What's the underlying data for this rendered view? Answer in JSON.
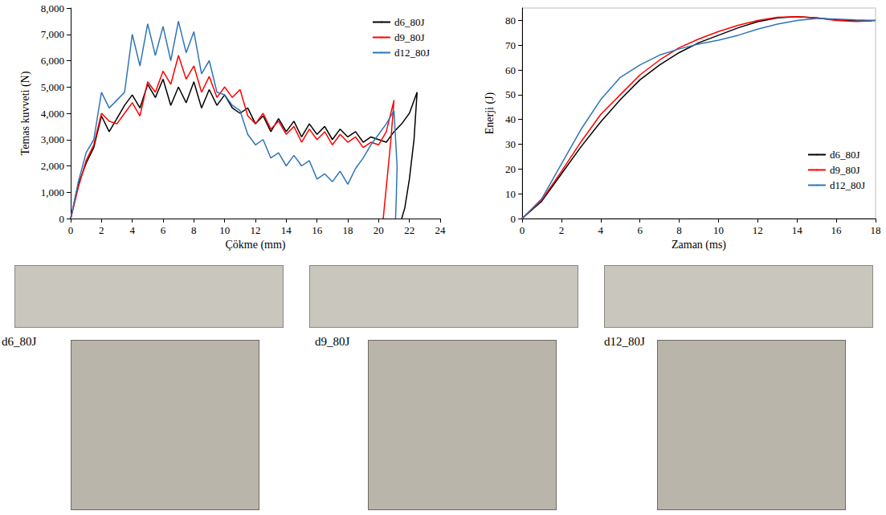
{
  "chart_data": [
    {
      "type": "line",
      "x_label": "Çökme (mm)",
      "y_label": "Temas kuvveti (N)",
      "xlim": [
        0,
        24
      ],
      "xticks": [
        0,
        2,
        4,
        6,
        8,
        10,
        12,
        14,
        16,
        18,
        20,
        22,
        24
      ],
      "ylim": [
        0,
        8000
      ],
      "yticks": [
        0,
        1000,
        2000,
        3000,
        4000,
        5000,
        6000,
        7000,
        8000
      ],
      "grid": false,
      "legend": "upper right",
      "series": [
        {
          "name": "d6_80J",
          "color": "#000000",
          "x": [
            0,
            0.5,
            1,
            1.5,
            2,
            2.5,
            3,
            3.5,
            4,
            4.5,
            5,
            5.5,
            6,
            6.5,
            7,
            7.5,
            8,
            8.5,
            9,
            9.5,
            10,
            10.5,
            11,
            11.5,
            12,
            12.5,
            13,
            13.5,
            14,
            14.5,
            15,
            15.5,
            16,
            16.5,
            17,
            17.5,
            18,
            18.5,
            19,
            19.5,
            20,
            20.5,
            21,
            21.5,
            22,
            22.5,
            22.3,
            22,
            21.7,
            21.5
          ],
          "values": [
            0,
            1300,
            2100,
            2700,
            3900,
            3300,
            3800,
            4300,
            4700,
            4200,
            5100,
            4600,
            5300,
            4300,
            5000,
            4400,
            5200,
            4200,
            4900,
            4300,
            4700,
            4200,
            4000,
            4200,
            3600,
            3900,
            3300,
            3800,
            3300,
            3700,
            3100,
            3600,
            3200,
            3500,
            3000,
            3400,
            3100,
            3300,
            2900,
            3100,
            3000,
            2900,
            3300,
            3600,
            4000,
            4800,
            3000,
            1500,
            400,
            0
          ]
        },
        {
          "name": "d9_80J",
          "color": "#ff0000",
          "x": [
            0,
            0.5,
            1,
            1.5,
            2,
            2.5,
            3,
            3.5,
            4,
            4.5,
            5,
            5.5,
            6,
            6.5,
            7,
            7.5,
            8,
            8.5,
            9,
            9.5,
            10,
            10.5,
            11,
            11.5,
            12,
            12.5,
            13,
            13.5,
            14,
            14.5,
            15,
            15.5,
            16,
            16.5,
            17,
            17.5,
            18,
            18.5,
            19,
            19.5,
            20,
            20.5,
            21,
            20.8,
            20.6,
            20.4,
            20.3
          ],
          "values": [
            0,
            1200,
            2200,
            2800,
            4000,
            3700,
            3600,
            4000,
            4400,
            3900,
            5200,
            4800,
            5600,
            5100,
            6200,
            5300,
            5800,
            4800,
            5400,
            4600,
            5000,
            4600,
            4900,
            3900,
            3600,
            4000,
            3400,
            3700,
            3200,
            3500,
            2900,
            3400,
            3000,
            3300,
            2800,
            3200,
            2900,
            3100,
            2700,
            2900,
            2800,
            3300,
            4500,
            3000,
            1800,
            600,
            0
          ]
        },
        {
          "name": "d12_80J",
          "color": "#2e75b6",
          "x": [
            0,
            0.5,
            1,
            1.5,
            2,
            2.5,
            3,
            3.5,
            4,
            4.5,
            5,
            5.5,
            6,
            6.5,
            7,
            7.5,
            8,
            8.5,
            9,
            9.5,
            10,
            10.5,
            11,
            11.5,
            12,
            12.5,
            13,
            13.5,
            14,
            14.5,
            15,
            15.5,
            16,
            16.5,
            17,
            17.5,
            18,
            18.5,
            19,
            19.5,
            20,
            20.5,
            21,
            21.2,
            21.15,
            21.1
          ],
          "values": [
            0,
            1400,
            2500,
            3000,
            4800,
            4200,
            4500,
            4800,
            7000,
            5800,
            7400,
            6200,
            7300,
            6000,
            7500,
            6300,
            7100,
            5500,
            6000,
            4800,
            4700,
            4300,
            4100,
            3200,
            2800,
            3000,
            2300,
            2500,
            2000,
            2400,
            2000,
            2200,
            1500,
            1700,
            1400,
            1800,
            1300,
            1900,
            2300,
            2800,
            3200,
            3600,
            4100,
            2000,
            800,
            0
          ]
        }
      ]
    },
    {
      "type": "line",
      "x_label": "Zaman (ms)",
      "y_label": "Enerji (J)",
      "xlim": [
        0,
        18
      ],
      "xticks": [
        0,
        2,
        4,
        6,
        8,
        10,
        12,
        14,
        16,
        18
      ],
      "ylim": [
        0,
        85
      ],
      "yticks": [
        0,
        10,
        20,
        30,
        40,
        50,
        60,
        70,
        80
      ],
      "grid": false,
      "legend": "lower right",
      "series": [
        {
          "name": "d6_80J",
          "color": "#000000",
          "x": [
            0,
            1,
            2,
            3,
            4,
            5,
            6,
            7,
            8,
            9,
            10,
            11,
            12,
            13,
            14,
            15,
            16,
            17,
            18
          ],
          "values": [
            0,
            7,
            18,
            29,
            39,
            48,
            56,
            62,
            67,
            71,
            74,
            77,
            79.5,
            81,
            81.5,
            81,
            80.2,
            79.8,
            80
          ]
        },
        {
          "name": "d9_80J",
          "color": "#ff0000",
          "x": [
            0,
            1,
            2,
            3,
            4,
            5,
            6,
            7,
            8,
            9,
            10,
            11,
            12,
            13,
            14,
            15,
            16,
            17,
            17.8
          ],
          "values": [
            0,
            7.5,
            19,
            31,
            42,
            50,
            58,
            64,
            69,
            72.5,
            75.5,
            78,
            80,
            81.3,
            81.5,
            81,
            80,
            79.6,
            79.8
          ]
        },
        {
          "name": "d12_80J",
          "color": "#2e75b6",
          "x": [
            0,
            1,
            2,
            3,
            4,
            5,
            6,
            7,
            8,
            9,
            10,
            11,
            12,
            13,
            14,
            15,
            16,
            17,
            18
          ],
          "values": [
            0,
            8,
            22,
            36,
            48,
            57,
            62,
            66,
            68.5,
            70.5,
            72,
            74,
            76.5,
            78.5,
            80,
            80.8,
            80.5,
            80.2,
            80
          ]
        }
      ]
    }
  ],
  "photo_labels": [
    "d6_80J",
    "d9_80J",
    "d12_80J"
  ]
}
